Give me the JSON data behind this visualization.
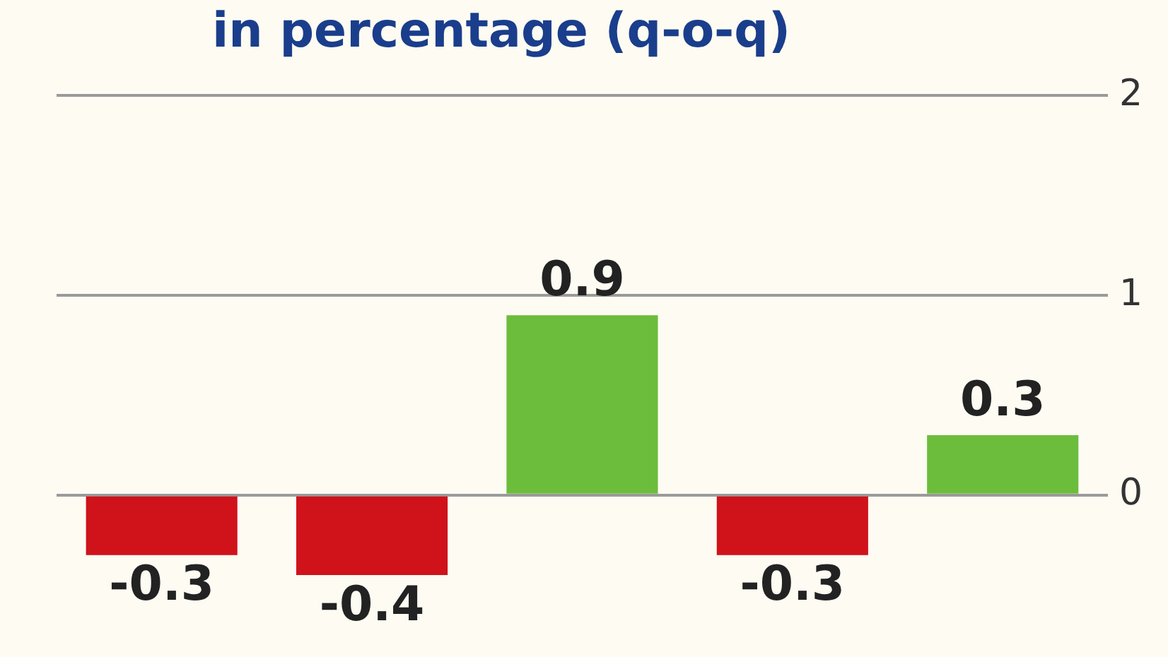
{
  "chart_data": {
    "type": "bar",
    "title": "in percentage (q-o-q)",
    "categories": [
      null,
      null,
      null,
      null,
      null
    ],
    "values": [
      -0.3,
      -0.4,
      0.9,
      -0.3,
      0.3
    ],
    "colors": [
      "#d0121b",
      "#d0121b",
      "#6cbd3c",
      "#d0121b",
      "#6cbd3c"
    ],
    "ylim": [
      -0.4,
      2
    ],
    "yticks": [
      0,
      1,
      2
    ],
    "grid": "y",
    "data_labels": true
  }
}
